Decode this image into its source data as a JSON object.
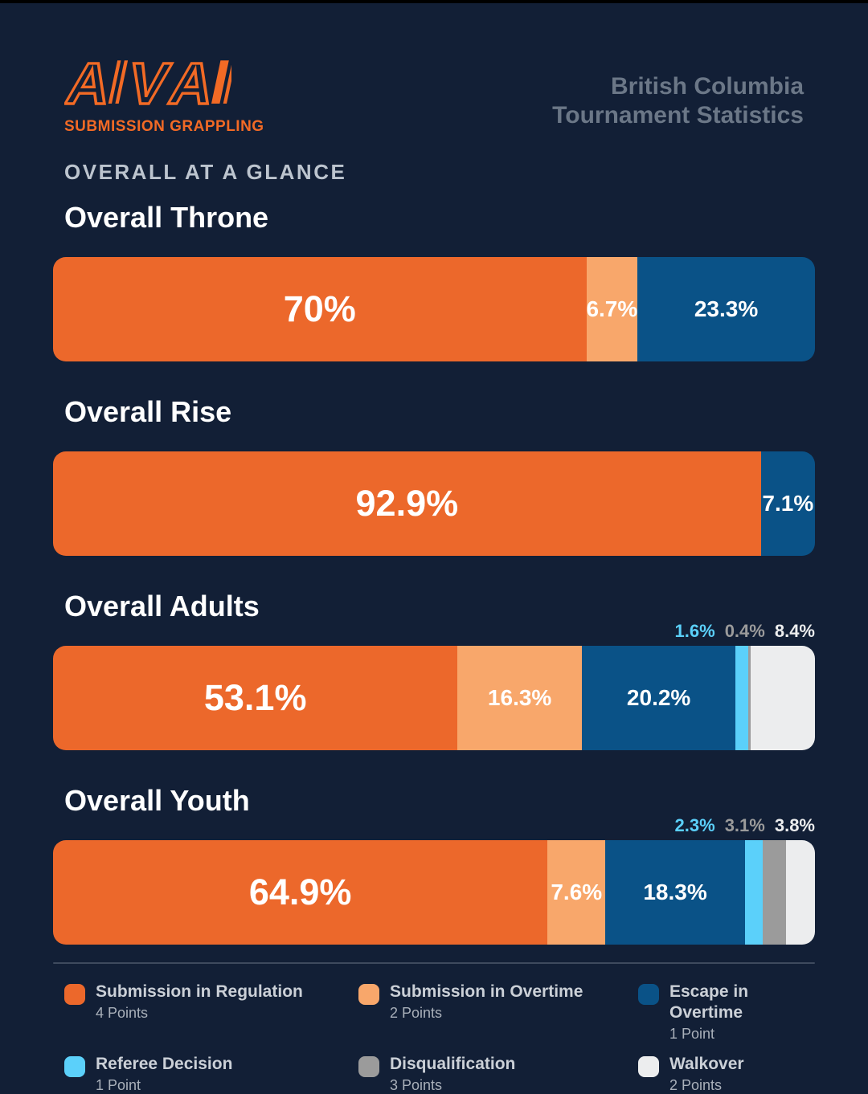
{
  "header": {
    "logo": {
      "letters": [
        "A",
        "V",
        "A"
      ],
      "tagline": "SUBMISSION GRAPPLING",
      "color": "#F26A25"
    },
    "title_line1": "British Columbia",
    "title_line2": "Tournament Statistics"
  },
  "section": {
    "eyebrow": "OVERALL AT A GLANCE"
  },
  "colors": {
    "background": "#121F36",
    "top_strip": "#000000",
    "eyebrow_text": "#BCC4CE",
    "header_title_text": "#6B7787",
    "divider": "#3E4A5E"
  },
  "chart_data": {
    "type": "bar",
    "subtype": "horizontal-stacked-percentage",
    "value_range": [
      0,
      100
    ],
    "grid": false,
    "legend_position": "bottom",
    "series": {
      "Submission in Regulation": {
        "color": "#EC682B",
        "points": "4 Points"
      },
      "Submission in Overtime": {
        "color": "#F8A76B",
        "points": "2 Points"
      },
      "Escape in Overtime": {
        "color": "#0A5287",
        "points": "1 Point"
      },
      "Referee Decision": {
        "color": "#5BD0FA",
        "points": "1 Point"
      },
      "Disqualification": {
        "color": "#9B9B9B",
        "points": "3 Points"
      },
      "Walkover": {
        "color": "#ECEDEE",
        "points": "2 Points"
      }
    },
    "charts": [
      {
        "title": "Overall Throne",
        "segments": [
          {
            "series": "Submission in Regulation",
            "value": 70,
            "label": "70%",
            "label_pos": "inside-large"
          },
          {
            "series": "Submission in Overtime",
            "value": 6.7,
            "label": "6.7%",
            "label_pos": "inside"
          },
          {
            "series": "Escape in Overtime",
            "value": 23.3,
            "label": "23.3%",
            "label_pos": "inside"
          }
        ]
      },
      {
        "title": "Overall Rise",
        "segments": [
          {
            "series": "Submission in Regulation",
            "value": 92.9,
            "label": "92.9%",
            "label_pos": "inside-large"
          },
          {
            "series": "Escape in Overtime",
            "value": 7.1,
            "label": "7.1%",
            "label_pos": "inside"
          }
        ]
      },
      {
        "title": "Overall Adults",
        "segments": [
          {
            "series": "Submission in Regulation",
            "value": 53.1,
            "label": "53.1%",
            "label_pos": "inside-large"
          },
          {
            "series": "Submission in Overtime",
            "value": 16.3,
            "label": "16.3%",
            "label_pos": "inside"
          },
          {
            "series": "Escape in Overtime",
            "value": 20.2,
            "label": "20.2%",
            "label_pos": "inside"
          },
          {
            "series": "Referee Decision",
            "value": 1.6,
            "label": "1.6%",
            "label_pos": "above"
          },
          {
            "series": "Disqualification",
            "value": 0.4,
            "label": "0.4%",
            "label_pos": "above"
          },
          {
            "series": "Walkover",
            "value": 8.4,
            "label": "8.4%",
            "label_pos": "above"
          }
        ]
      },
      {
        "title": "Overall Youth",
        "segments": [
          {
            "series": "Submission in Regulation",
            "value": 64.9,
            "label": "64.9%",
            "label_pos": "inside-large"
          },
          {
            "series": "Submission in Overtime",
            "value": 7.6,
            "label": "7.6%",
            "label_pos": "inside"
          },
          {
            "series": "Escape in Overtime",
            "value": 18.3,
            "label": "18.3%",
            "label_pos": "inside"
          },
          {
            "series": "Referee Decision",
            "value": 2.3,
            "label": "2.3%",
            "label_pos": "above"
          },
          {
            "series": "Disqualification",
            "value": 3.1,
            "label": "3.1%",
            "label_pos": "above"
          },
          {
            "series": "Walkover",
            "value": 3.8,
            "label": "3.8%",
            "label_pos": "above"
          }
        ]
      }
    ]
  },
  "legend": {
    "items": [
      {
        "name": "Submission in Regulation",
        "points": "4 Points",
        "color": "#EC682B"
      },
      {
        "name": "Submission in Overtime",
        "points": "2 Points",
        "color": "#F8A76B"
      },
      {
        "name": "Escape in Overtime",
        "points": "1 Point",
        "color": "#0A5287"
      },
      {
        "name": "Referee Decision",
        "points": "1 Point",
        "color": "#5BD0FA"
      },
      {
        "name": "Disqualification",
        "points": "3 Points",
        "color": "#9B9B9B"
      },
      {
        "name": "Walkover",
        "points": "2 Points",
        "color": "#ECEDEE"
      }
    ]
  }
}
